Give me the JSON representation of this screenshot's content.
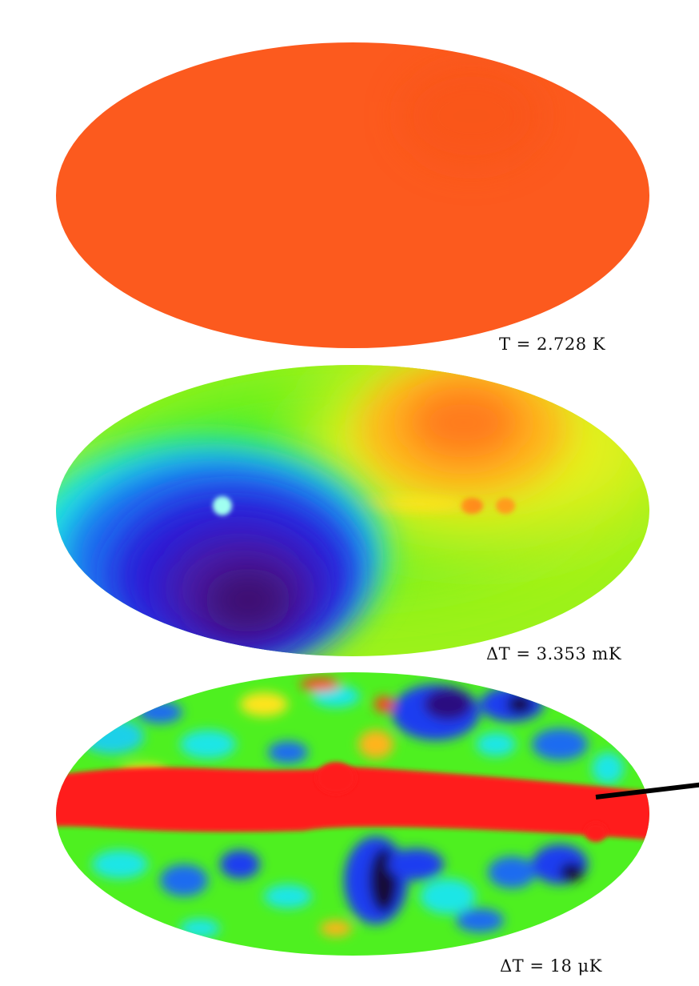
{
  "maps": [
    {
      "label": "T = 2.728 K"
    },
    {
      "label": "ΔT = 3.353 mK"
    },
    {
      "label": "ΔT = 18 μK"
    }
  ],
  "colors": {
    "background": "#ffffff",
    "uniform_orange": "#fc5a1e",
    "galactic_red": "#ff1c1c",
    "pointer_line": "#000000"
  }
}
